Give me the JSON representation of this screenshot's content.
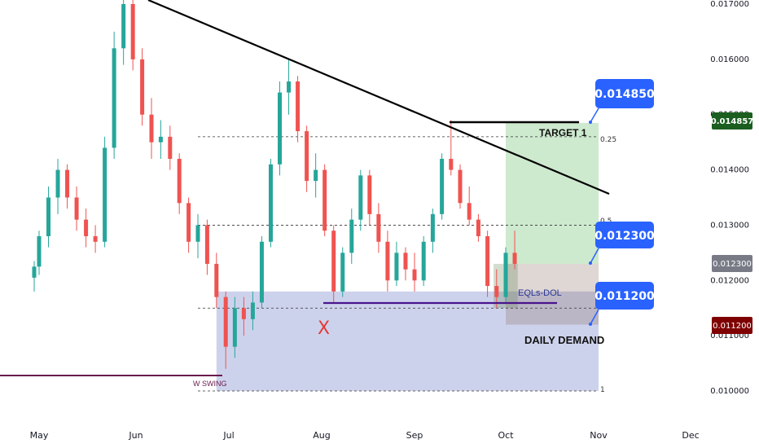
{
  "chart_data": {
    "type": "candlestick",
    "title": "",
    "x_axis": {
      "labels": [
        "May",
        "Jun",
        "Jul",
        "Aug",
        "Sep",
        "Oct",
        "Nov",
        "Dec"
      ]
    },
    "y_axis": {
      "ticks": [
        "0.017000",
        "0.016000",
        "0.015000",
        "0.014000",
        "0.013000",
        "0.012000",
        "0.011000",
        "0.010000"
      ],
      "ylim": [
        0.0098,
        0.0172
      ]
    },
    "colors": {
      "up": "#26a69a",
      "down": "#ef5350",
      "trendline": "#000000",
      "demand_zone": "#9fa8da",
      "target_zone": "#81c784",
      "eql_line": "#4a148c",
      "callout": "#2962ff",
      "price_badge": "#1b5e20",
      "low_badge": "#7f0000"
    },
    "candles": [
      {
        "x": "Apr 28",
        "o": 0.01205,
        "h": 0.01235,
        "l": 0.0118,
        "c": 0.01225
      },
      {
        "x": "May 01",
        "o": 0.01225,
        "h": 0.0129,
        "l": 0.0121,
        "c": 0.0128
      },
      {
        "x": "May 04",
        "o": 0.0128,
        "h": 0.0137,
        "l": 0.0126,
        "c": 0.0135
      },
      {
        "x": "May 07",
        "o": 0.0135,
        "h": 0.0142,
        "l": 0.0132,
        "c": 0.014
      },
      {
        "x": "May 10",
        "o": 0.014,
        "h": 0.0141,
        "l": 0.0133,
        "c": 0.0135
      },
      {
        "x": "May 13",
        "o": 0.0135,
        "h": 0.0137,
        "l": 0.0129,
        "c": 0.0131
      },
      {
        "x": "May 16",
        "o": 0.0131,
        "h": 0.0133,
        "l": 0.0126,
        "c": 0.0128
      },
      {
        "x": "May 19",
        "o": 0.0128,
        "h": 0.013,
        "l": 0.0125,
        "c": 0.0127
      },
      {
        "x": "May 22",
        "o": 0.0127,
        "h": 0.0146,
        "l": 0.0126,
        "c": 0.0144
      },
      {
        "x": "May 25",
        "o": 0.0144,
        "h": 0.0165,
        "l": 0.0142,
        "c": 0.0162
      },
      {
        "x": "May 28",
        "o": 0.0162,
        "h": 0.0172,
        "l": 0.0159,
        "c": 0.017
      },
      {
        "x": "May 31",
        "o": 0.017,
        "h": 0.0171,
        "l": 0.0158,
        "c": 0.016
      },
      {
        "x": "Jun 03",
        "o": 0.016,
        "h": 0.0162,
        "l": 0.0148,
        "c": 0.015
      },
      {
        "x": "Jun 06",
        "o": 0.015,
        "h": 0.0153,
        "l": 0.0142,
        "c": 0.0145
      },
      {
        "x": "Jun 09",
        "o": 0.0145,
        "h": 0.0149,
        "l": 0.0142,
        "c": 0.0146
      },
      {
        "x": "Jun 12",
        "o": 0.0146,
        "h": 0.0148,
        "l": 0.014,
        "c": 0.0142
      },
      {
        "x": "Jun 15",
        "o": 0.0142,
        "h": 0.0143,
        "l": 0.0132,
        "c": 0.0134
      },
      {
        "x": "Jun 18",
        "o": 0.0134,
        "h": 0.0135,
        "l": 0.0125,
        "c": 0.0127
      },
      {
        "x": "Jun 21",
        "o": 0.0127,
        "h": 0.0132,
        "l": 0.0124,
        "c": 0.013
      },
      {
        "x": "Jun 24",
        "o": 0.013,
        "h": 0.0131,
        "l": 0.0121,
        "c": 0.0123
      },
      {
        "x": "Jun 27",
        "o": 0.0123,
        "h": 0.0125,
        "l": 0.0115,
        "c": 0.0117
      },
      {
        "x": "Jun 30",
        "o": 0.0117,
        "h": 0.0118,
        "l": 0.0104,
        "c": 0.0108
      },
      {
        "x": "Jul 03",
        "o": 0.0108,
        "h": 0.0117,
        "l": 0.0106,
        "c": 0.0115
      },
      {
        "x": "Jul 06",
        "o": 0.0115,
        "h": 0.0117,
        "l": 0.011,
        "c": 0.0113
      },
      {
        "x": "Jul 09",
        "o": 0.0113,
        "h": 0.0118,
        "l": 0.0111,
        "c": 0.0116
      },
      {
        "x": "Jul 12",
        "o": 0.0116,
        "h": 0.0128,
        "l": 0.0115,
        "c": 0.0127
      },
      {
        "x": "Jul 15",
        "o": 0.0127,
        "h": 0.0142,
        "l": 0.0126,
        "c": 0.0141
      },
      {
        "x": "Jul 18",
        "o": 0.0141,
        "h": 0.0156,
        "l": 0.0139,
        "c": 0.0154
      },
      {
        "x": "Jul 21",
        "o": 0.0154,
        "h": 0.016,
        "l": 0.015,
        "c": 0.0156
      },
      {
        "x": "Jul 24",
        "o": 0.0156,
        "h": 0.0157,
        "l": 0.0145,
        "c": 0.0147
      },
      {
        "x": "Jul 27",
        "o": 0.0147,
        "h": 0.0148,
        "l": 0.0136,
        "c": 0.0138
      },
      {
        "x": "Jul 30",
        "o": 0.0138,
        "h": 0.0143,
        "l": 0.0135,
        "c": 0.014
      },
      {
        "x": "Aug 02",
        "o": 0.014,
        "h": 0.0141,
        "l": 0.0128,
        "c": 0.0129
      },
      {
        "x": "Aug 05",
        "o": 0.0129,
        "h": 0.013,
        "l": 0.0116,
        "c": 0.0118
      },
      {
        "x": "Aug 08",
        "o": 0.0118,
        "h": 0.0126,
        "l": 0.0117,
        "c": 0.0125
      },
      {
        "x": "Aug 11",
        "o": 0.0125,
        "h": 0.0133,
        "l": 0.0123,
        "c": 0.0131
      },
      {
        "x": "Aug 14",
        "o": 0.0131,
        "h": 0.014,
        "l": 0.0129,
        "c": 0.0139
      },
      {
        "x": "Aug 17",
        "o": 0.0139,
        "h": 0.014,
        "l": 0.013,
        "c": 0.0132
      },
      {
        "x": "Aug 20",
        "o": 0.0132,
        "h": 0.0134,
        "l": 0.0125,
        "c": 0.0127
      },
      {
        "x": "Aug 23",
        "o": 0.0127,
        "h": 0.0129,
        "l": 0.0118,
        "c": 0.012
      },
      {
        "x": "Aug 26",
        "o": 0.012,
        "h": 0.0127,
        "l": 0.0119,
        "c": 0.0125
      },
      {
        "x": "Aug 29",
        "o": 0.0125,
        "h": 0.0126,
        "l": 0.012,
        "c": 0.0122
      },
      {
        "x": "Sep 01",
        "o": 0.0122,
        "h": 0.0125,
        "l": 0.0118,
        "c": 0.012
      },
      {
        "x": "Sep 04",
        "o": 0.012,
        "h": 0.0128,
        "l": 0.0119,
        "c": 0.0127
      },
      {
        "x": "Sep 07",
        "o": 0.0127,
        "h": 0.0133,
        "l": 0.0125,
        "c": 0.0132
      },
      {
        "x": "Sep 10",
        "o": 0.0132,
        "h": 0.0143,
        "l": 0.0131,
        "c": 0.0142
      },
      {
        "x": "Sep 13",
        "o": 0.0142,
        "h": 0.0149,
        "l": 0.0139,
        "c": 0.014
      },
      {
        "x": "Sep 16",
        "o": 0.014,
        "h": 0.0141,
        "l": 0.0133,
        "c": 0.0134
      },
      {
        "x": "Sep 19",
        "o": 0.0134,
        "h": 0.0137,
        "l": 0.013,
        "c": 0.0131
      },
      {
        "x": "Sep 22",
        "o": 0.0131,
        "h": 0.0132,
        "l": 0.0127,
        "c": 0.0128
      },
      {
        "x": "Sep 25",
        "o": 0.0128,
        "h": 0.0129,
        "l": 0.0117,
        "c": 0.0119
      },
      {
        "x": "Sep 28",
        "o": 0.0119,
        "h": 0.0122,
        "l": 0.0115,
        "c": 0.0117
      },
      {
        "x": "Oct 01",
        "o": 0.0117,
        "h": 0.0126,
        "l": 0.0116,
        "c": 0.0125
      },
      {
        "x": "Oct 04",
        "o": 0.0125,
        "h": 0.0129,
        "l": 0.0122,
        "c": 0.0123
      }
    ],
    "trendline": {
      "from": {
        "x": "Jun 03",
        "y": 0.01725
      },
      "to": {
        "x": "Nov 08",
        "y": 0.0136
      }
    },
    "levels": [
      {
        "price": 0.0146,
        "label": "0.25",
        "style": "dashed"
      },
      {
        "price": 0.013,
        "label": "0.5",
        "style": "dashed"
      },
      {
        "price": 0.01,
        "label": "1",
        "style": "dashed"
      }
    ],
    "zones": {
      "daily_demand": {
        "top": 0.0118,
        "bottom": 0.01,
        "from": "Jun 27",
        "to": "Nov 01"
      },
      "target": {
        "top": 0.01485,
        "bottom": 0.0123,
        "from": "Oct 01",
        "to": "Nov 01"
      },
      "risk": {
        "top": 0.0123,
        "bottom": 0.0112,
        "from": "Oct 01",
        "to": "Nov 01"
      }
    },
    "eql_line": {
      "price": 0.0116,
      "from": "Aug 05",
      "to": "Oct 20"
    },
    "swing_low_line": {
      "price": 0.0103,
      "from": "Apr 20",
      "to": "Jul 01"
    },
    "target_line": {
      "price": 0.01485,
      "from": "Sep 13",
      "to": "Oct 27"
    }
  },
  "annotations": {
    "target_label": "TARGET 1",
    "eql_label": "EQLs-DOL",
    "demand_label": "DAILY DEMAND",
    "swing_label": "W SWING",
    "x_mark": "X",
    "fib_025": "0.25",
    "fib_05": "0.5",
    "fib_1": "1"
  },
  "callouts": {
    "target_price": "0.014850",
    "entry_price": "0.012300",
    "stop_price": "0.011200"
  },
  "price_scale": {
    "current_price": "0.014857",
    "entry_badge": "0.012300",
    "stop_badge": "0.011200"
  }
}
